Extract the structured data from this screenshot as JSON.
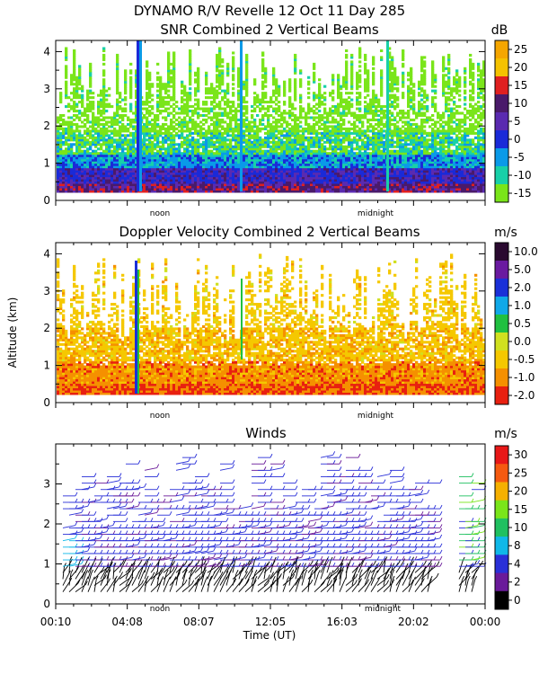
{
  "figure_title": "DYNAMO R/V Revelle  12 Oct 11 Day 285",
  "y_axis_label": "Altitude (km)",
  "x_axis_label": "Time (UT)",
  "noon_label": "noon",
  "midnight_label": "midnight",
  "chart_data": [
    {
      "type": "heatmap",
      "title": "SNR Combined 2 Vertical Beams",
      "ylabel": "Altitude (km)",
      "yticks": [
        "0",
        "1",
        "2",
        "3",
        "4"
      ],
      "ylim": [
        0,
        4.3
      ],
      "colorbar": {
        "unit": "dB",
        "labels": [
          "25",
          "20",
          "15",
          "10",
          "5",
          "0",
          "-5",
          "-10",
          "-15"
        ],
        "colors": [
          "#f5a600",
          "#f5c200",
          "#e02020",
          "#4a1a6a",
          "#5a2ab0",
          "#1a2ad8",
          "#0a9ae8",
          "#18d0a8",
          "#7ae51a"
        ]
      }
    },
    {
      "type": "heatmap",
      "title": "Doppler Velocity Combined 2 Vertical Beams",
      "ylabel": "Altitude (km)",
      "yticks": [
        "0",
        "1",
        "2",
        "3",
        "4"
      ],
      "ylim": [
        0,
        4.3
      ],
      "colorbar": {
        "unit": "m/s",
        "labels": [
          "10.0",
          "5.0",
          "2.0",
          "1.0",
          "0.5",
          "0.0",
          "-0.5",
          "-1.0",
          "-2.0"
        ],
        "colors": [
          "#2a0a30",
          "#6a1aa0",
          "#1a30d8",
          "#10a8e8",
          "#20c040",
          "#d0e020",
          "#f5c800",
          "#f59000",
          "#e82010"
        ]
      }
    },
    {
      "type": "wind-barbs",
      "title": "Winds",
      "ylabel": "Altitude (km)",
      "xlabel": "Time (UT)",
      "yticks": [
        "0",
        "1",
        "2",
        "3"
      ],
      "ylim": [
        0,
        4.0
      ],
      "xticks": [
        "00:10",
        "04:08",
        "08:07",
        "12:05",
        "16:03",
        "20:02",
        "00:00"
      ],
      "colorbar": {
        "unit": "m/s",
        "labels": [
          "30",
          "25",
          "20",
          "15",
          "10",
          "8",
          "4",
          "2",
          "0"
        ],
        "colors": [
          "#e81818",
          "#f55a10",
          "#f5b000",
          "#7ae51a",
          "#20c060",
          "#10b8e8",
          "#2a30d8",
          "#6a1a9a",
          "#000000"
        ]
      }
    }
  ]
}
